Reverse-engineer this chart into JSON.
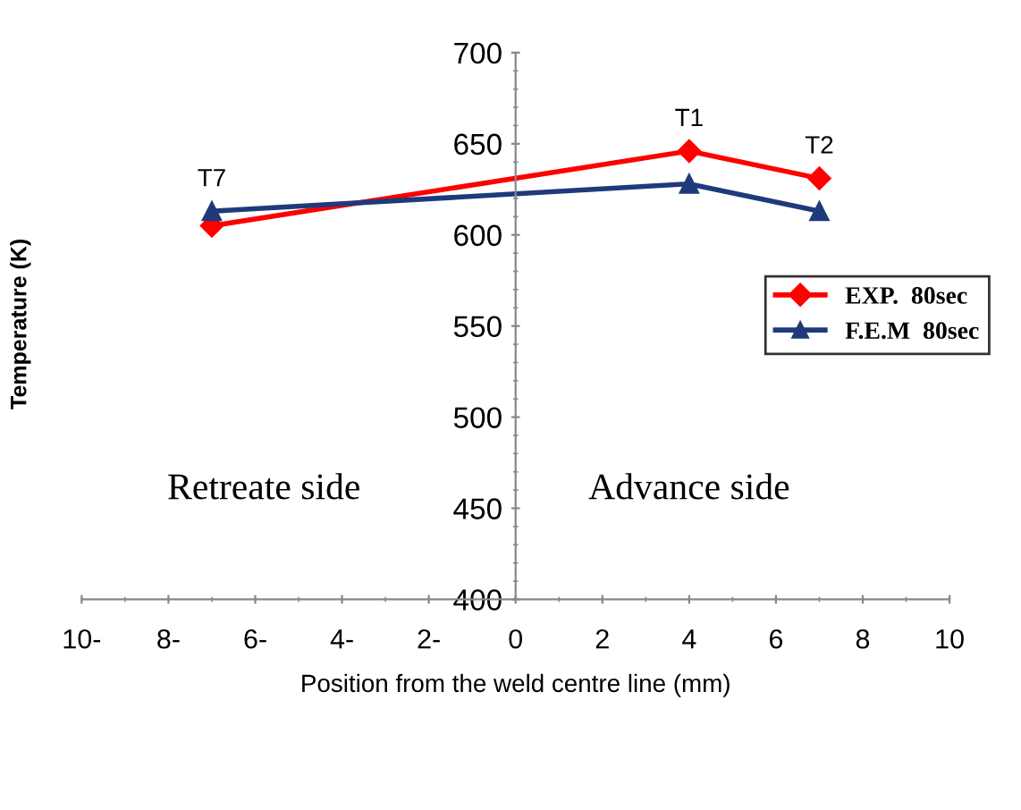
{
  "chart_data": {
    "type": "line",
    "xlabel": "Position from the weld centre line (mm)",
    "ylabel": "Temperature (K)",
    "x": [
      -7,
      4,
      7
    ],
    "series": [
      {
        "name": "EXP.  80sec",
        "color": "#ff0000",
        "marker": "diamond",
        "values": [
          605,
          646,
          631
        ]
      },
      {
        "name": "F.E.M  80sec",
        "color": "#1f3a7a",
        "marker": "triangle",
        "values": [
          613,
          628,
          613
        ]
      }
    ],
    "xlim": [
      -10,
      10
    ],
    "ylim": [
      400,
      700
    ],
    "xticks": [
      {
        "value": -10,
        "label": "10-"
      },
      {
        "value": -8,
        "label": "8-"
      },
      {
        "value": -6,
        "label": "6-"
      },
      {
        "value": -4,
        "label": "4-"
      },
      {
        "value": -2,
        "label": "2-"
      },
      0,
      2,
      4,
      6,
      8,
      10
    ],
    "yticks": [
      400,
      450,
      500,
      550,
      600,
      650,
      700
    ],
    "annotations": [
      {
        "text": "T7",
        "x": -7,
        "y": 613
      },
      {
        "text": "T1",
        "x": 4,
        "y": 646
      },
      {
        "text": "T2",
        "x": 7,
        "y": 631
      },
      "Retreate side",
      "Advance side"
    ],
    "grid": false,
    "legend": "right",
    "line_style": "solid"
  }
}
